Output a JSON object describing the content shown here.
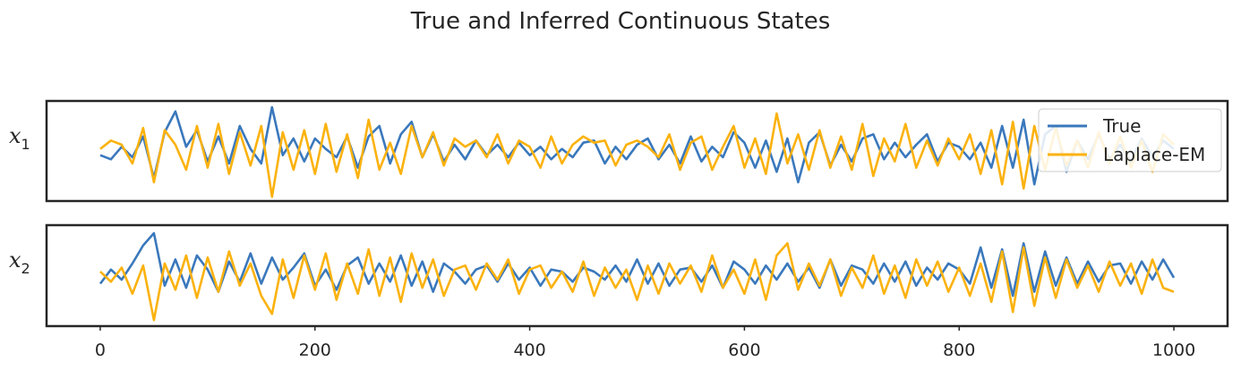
{
  "chart_data": {
    "type": "line",
    "title": "True and Inferred Continuous States",
    "xlabel": "",
    "xlim": [
      -50,
      1050
    ],
    "xticks": [
      "0",
      "200",
      "400",
      "600",
      "800",
      "1000"
    ],
    "grid": false,
    "legend": {
      "placement": "top-right",
      "entries": [
        "True",
        "Laplace-EM"
      ]
    },
    "colors": {
      "True": "#3a78bc",
      "Laplace-EM": "#fbb20e",
      "axes": "#262626"
    },
    "panels": [
      {
        "ylabel": "x",
        "ylabel_sub": "1",
        "ylim": [
          -2.4,
          2.4
        ],
        "series": [
          {
            "name": "True",
            "x": [
              0,
              10,
              20,
              30,
              40,
              50,
              60,
              70,
              80,
              90,
              100,
              110,
              120,
              130,
              140,
              150,
              160,
              170,
              180,
              190,
              200,
              210,
              220,
              230,
              240,
              250,
              260,
              270,
              280,
              290,
              300,
              310,
              320,
              330,
              340,
              350,
              360,
              370,
              380,
              390,
              400,
              410,
              420,
              430,
              440,
              450,
              460,
              470,
              480,
              490,
              500,
              510,
              520,
              530,
              540,
              550,
              560,
              570,
              580,
              590,
              600,
              610,
              620,
              630,
              640,
              650,
              660,
              670,
              680,
              690,
              700,
              710,
              720,
              730,
              740,
              750,
              760,
              770,
              780,
              790,
              800,
              810,
              820,
              830,
              840,
              850,
              860,
              870,
              880,
              890,
              900,
              910,
              920,
              930,
              940,
              950,
              960,
              970,
              980,
              990,
              1000
            ],
            "values": [
              -0.2,
              -0.4,
              0.2,
              -0.3,
              0.7,
              -1.3,
              0.9,
              1.9,
              0.2,
              1.0,
              -0.5,
              0.7,
              -0.6,
              1.2,
              0.1,
              -0.6,
              2.1,
              -0.2,
              0.6,
              -0.5,
              0.6,
              0.1,
              -0.3,
              0.7,
              -0.8,
              0.7,
              1.2,
              -0.6,
              0.8,
              1.4,
              -0.3,
              0.8,
              -0.5,
              0.3,
              -0.4,
              0.5,
              -0.2,
              0.3,
              -0.3,
              0.4,
              -0.2,
              0.2,
              -0.4,
              0.1,
              -0.3,
              0.4,
              0.5,
              -0.6,
              0.2,
              -0.4,
              0.3,
              0.6,
              -0.4,
              0.3,
              -0.6,
              0.7,
              -0.5,
              0.2,
              -0.3,
              0.9,
              0.4,
              -0.8,
              0.5,
              -1.0,
              0.6,
              -1.5,
              0.4,
              0.9,
              -0.7,
              0.3,
              -0.5,
              0.6,
              0.8,
              -0.4,
              0.4,
              -0.3,
              0.3,
              0.8,
              -0.5,
              0.4,
              0.2,
              -0.4,
              0.4,
              -0.8,
              1.2,
              -0.8,
              1.5,
              -1.6,
              0.8,
              1.2,
              -1.0,
              0.5,
              -0.4,
              0.8,
              -0.4,
              0.3,
              -0.5,
              0.6,
              -0.3,
              0.5,
              0.1
            ]
          },
          {
            "name": "Laplace-EM",
            "x": [
              0,
              10,
              20,
              30,
              40,
              50,
              60,
              70,
              80,
              90,
              100,
              110,
              120,
              130,
              140,
              150,
              160,
              170,
              180,
              190,
              200,
              210,
              220,
              230,
              240,
              250,
              260,
              270,
              280,
              290,
              300,
              310,
              320,
              330,
              340,
              350,
              360,
              370,
              380,
              390,
              400,
              410,
              420,
              430,
              440,
              450,
              460,
              470,
              480,
              490,
              500,
              510,
              520,
              530,
              540,
              550,
              560,
              570,
              580,
              590,
              600,
              610,
              620,
              630,
              640,
              650,
              660,
              670,
              680,
              690,
              700,
              710,
              720,
              730,
              740,
              750,
              760,
              770,
              780,
              790,
              800,
              810,
              820,
              830,
              840,
              850,
              860,
              870,
              880,
              890,
              900,
              910,
              920,
              930,
              940,
              950,
              960,
              970,
              980,
              990,
              1000
            ],
            "values": [
              0.1,
              0.5,
              0.3,
              -0.6,
              1.1,
              -1.5,
              1.0,
              0.3,
              -0.9,
              1.2,
              -0.8,
              1.3,
              -1.1,
              0.9,
              -0.7,
              1.2,
              -2.2,
              0.9,
              -0.9,
              1.0,
              -1.1,
              1.3,
              -1.0,
              0.8,
              -1.3,
              1.5,
              -0.9,
              0.4,
              -1.1,
              1.2,
              -0.3,
              0.9,
              -0.7,
              0.6,
              0.2,
              0.5,
              -0.3,
              0.8,
              -0.6,
              0.5,
              0.2,
              -0.8,
              0.7,
              -0.6,
              0.3,
              0.7,
              0.4,
              0.5,
              -0.7,
              0.3,
              0.5,
              0.2,
              -0.3,
              0.8,
              -0.9,
              0.4,
              0.7,
              -0.9,
              0.2,
              1.2,
              -0.8,
              0.6,
              -1.1,
              1.8,
              -0.6,
              0.8,
              -0.9,
              1.0,
              -0.8,
              0.7,
              -0.9,
              1.3,
              -1.2,
              0.6,
              -0.5,
              1.3,
              -0.8,
              0.5,
              -0.7,
              0.6,
              -0.4,
              0.8,
              -1.1,
              1.0,
              -1.6,
              1.4,
              -1.8,
              1.2,
              -0.9,
              1.1,
              -0.7,
              0.5,
              -0.8,
              0.9,
              -0.6,
              0.7,
              -0.8,
              0.5,
              -1.0,
              0.8,
              0.3
            ]
          }
        ]
      },
      {
        "ylabel": "x",
        "ylabel_sub": "2",
        "ylim": [
          -2.5,
          2.5
        ],
        "series": [
          {
            "name": "True",
            "x": [
              0,
              10,
              20,
              30,
              40,
              50,
              60,
              70,
              80,
              90,
              100,
              110,
              120,
              130,
              140,
              150,
              160,
              170,
              180,
              190,
              200,
              210,
              220,
              230,
              240,
              250,
              260,
              270,
              280,
              290,
              300,
              310,
              320,
              330,
              340,
              350,
              360,
              370,
              380,
              390,
              400,
              410,
              420,
              430,
              440,
              450,
              460,
              470,
              480,
              490,
              500,
              510,
              520,
              530,
              540,
              550,
              560,
              570,
              580,
              590,
              600,
              610,
              620,
              630,
              640,
              650,
              660,
              670,
              680,
              690,
              700,
              710,
              720,
              730,
              740,
              750,
              760,
              770,
              780,
              790,
              800,
              810,
              820,
              830,
              840,
              850,
              860,
              870,
              880,
              890,
              900,
              910,
              920,
              930,
              940,
              950,
              960,
              970,
              980,
              990,
              1000
            ],
            "values": [
              -0.4,
              0.3,
              -0.2,
              0.6,
              1.5,
              2.1,
              -0.5,
              0.8,
              -0.6,
              1.0,
              0.3,
              -0.8,
              0.7,
              -0.3,
              1.1,
              -0.4,
              0.9,
              -0.2,
              0.4,
              1.1,
              -0.5,
              0.3,
              -0.7,
              0.5,
              0.9,
              -0.4,
              0.6,
              -0.3,
              1.0,
              -0.5,
              0.7,
              -0.8,
              0.6,
              0.2,
              -0.4,
              0.3,
              0.5,
              -0.3,
              0.6,
              -0.2,
              0.4,
              -0.5,
              0.3,
              0.2,
              -0.3,
              0.4,
              0.2,
              -0.2,
              0.5,
              -0.3,
              0.8,
              -0.4,
              0.6,
              -0.5,
              0.3,
              0.4,
              -0.3,
              0.5,
              -0.6,
              0.7,
              0.3,
              -0.4,
              0.5,
              -0.2,
              0.6,
              -0.3,
              0.4,
              -0.6,
              0.8,
              -0.5,
              0.5,
              0.3,
              -0.4,
              0.6,
              -0.3,
              0.7,
              -0.5,
              0.4,
              -0.2,
              0.6,
              0.3,
              -0.4,
              1.4,
              -0.6,
              1.3,
              -1.0,
              1.6,
              -0.8,
              1.2,
              -0.5,
              0.9,
              -0.4,
              0.7,
              -0.3,
              0.5,
              0.6,
              -0.4,
              0.7,
              -0.2,
              0.8,
              -0.1
            ]
          },
          {
            "name": "Laplace-EM",
            "x": [
              0,
              10,
              20,
              30,
              40,
              50,
              60,
              70,
              80,
              90,
              100,
              110,
              120,
              130,
              140,
              150,
              160,
              170,
              180,
              190,
              200,
              210,
              220,
              230,
              240,
              250,
              260,
              270,
              280,
              290,
              300,
              310,
              320,
              330,
              340,
              350,
              360,
              370,
              380,
              390,
              400,
              410,
              420,
              430,
              440,
              450,
              460,
              470,
              480,
              490,
              500,
              510,
              520,
              530,
              540,
              550,
              560,
              570,
              580,
              590,
              600,
              610,
              620,
              630,
              640,
              650,
              660,
              670,
              680,
              690,
              700,
              710,
              720,
              730,
              740,
              750,
              760,
              770,
              780,
              790,
              800,
              810,
              820,
              830,
              840,
              850,
              860,
              870,
              880,
              890,
              900,
              910,
              920,
              930,
              940,
              950,
              960,
              970,
              980,
              990,
              1000
            ],
            "values": [
              0.2,
              -0.3,
              0.4,
              -0.9,
              0.5,
              -2.2,
              0.6,
              -0.7,
              1.0,
              -1.1,
              0.9,
              -0.8,
              1.2,
              -0.5,
              0.6,
              -1.0,
              -1.9,
              0.8,
              -1.1,
              1.0,
              -0.7,
              1.1,
              -1.2,
              0.6,
              -0.9,
              1.3,
              -1.0,
              0.9,
              -1.3,
              1.1,
              -0.6,
              0.8,
              -1.0,
              0.3,
              0.5,
              -0.7,
              0.6,
              -0.2,
              0.8,
              -0.9,
              0.3,
              0.5,
              -0.6,
              0.2,
              -0.8,
              0.7,
              -1.0,
              0.4,
              -0.6,
              0.3,
              -1.2,
              0.5,
              -0.9,
              0.6,
              -0.4,
              0.5,
              -0.8,
              1.0,
              -0.6,
              0.3,
              -0.9,
              0.8,
              -1.2,
              1.0,
              1.6,
              -0.7,
              0.6,
              -0.5,
              0.8,
              -1.0,
              0.4,
              -0.6,
              1.0,
              -0.9,
              0.5,
              -1.1,
              0.8,
              -0.5,
              0.7,
              -0.8,
              0.4,
              -1.0,
              0.6,
              -1.3,
              1.2,
              -1.8,
              1.4,
              -1.5,
              0.9,
              -1.1,
              0.8,
              -0.6,
              0.5,
              -0.8,
              0.7,
              -0.5,
              0.6,
              -0.9,
              0.8,
              -0.6,
              -0.8
            ]
          }
        ]
      }
    ]
  }
}
